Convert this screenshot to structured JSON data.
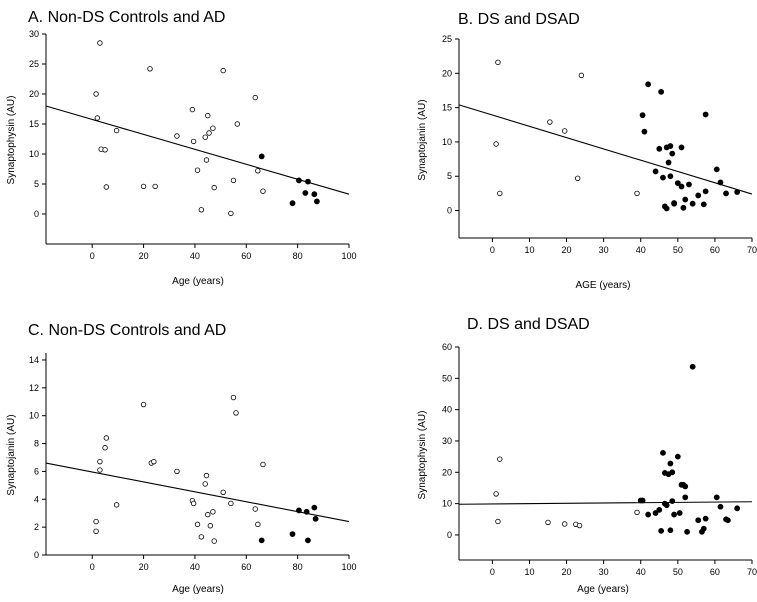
{
  "chart_data": [
    {
      "type": "scatter",
      "title": "A. Non-DS Controls and AD",
      "xlabel": "Age (years)",
      "ylabel": "Synaptophysin (AU)",
      "xlim": [
        -18,
        100
      ],
      "ylim": [
        -5,
        30
      ],
      "xticks": [
        0,
        20,
        40,
        60,
        80,
        100
      ],
      "yticks": [
        0,
        5,
        10,
        15,
        20,
        25,
        30
      ],
      "grid": false,
      "regression": {
        "x": [
          -18,
          100
        ],
        "y": [
          18.0,
          3.3
        ]
      },
      "series": [
        {
          "marker": "open",
          "points": [
            [
              1.5,
              20
            ],
            [
              2,
              16
            ],
            [
              3,
              28.5
            ],
            [
              3.5,
              10.8
            ],
            [
              5,
              10.7
            ],
            [
              5.5,
              4.5
            ],
            [
              9.5,
              13.9
            ],
            [
              20,
              4.6
            ],
            [
              22.5,
              24.2
            ],
            [
              24.5,
              4.6
            ],
            [
              33,
              13
            ],
            [
              39,
              17.4
            ],
            [
              39.5,
              12.1
            ],
            [
              41,
              7.3
            ],
            [
              42.5,
              0.7
            ],
            [
              44,
              12.8
            ],
            [
              44.5,
              9
            ],
            [
              45,
              16.4
            ],
            [
              45.5,
              13.5
            ],
            [
              47,
              14.3
            ],
            [
              47.5,
              4.4
            ],
            [
              51,
              23.9
            ],
            [
              54,
              0.1
            ],
            [
              55,
              5.6
            ],
            [
              56.5,
              15
            ],
            [
              63.5,
              19.4
            ],
            [
              64.5,
              7.2
            ],
            [
              66.5,
              3.8
            ]
          ]
        },
        {
          "marker": "filled",
          "points": [
            [
              66,
              9.6
            ],
            [
              78,
              1.8
            ],
            [
              80.5,
              5.6
            ],
            [
              83,
              3.5
            ],
            [
              84,
              5.4
            ],
            [
              86.5,
              3.3
            ],
            [
              87.5,
              2.1
            ]
          ]
        }
      ]
    },
    {
      "type": "scatter",
      "title": "B. DS and DSAD",
      "xlabel": "AGE (years)",
      "ylabel": "Synaptojanin (AU)",
      "xlim": [
        -9,
        70
      ],
      "ylim": [
        -4,
        25
      ],
      "xticks": [
        0,
        10,
        20,
        30,
        40,
        50,
        60,
        70
      ],
      "yticks": [
        0,
        5,
        10,
        15,
        20,
        25
      ],
      "grid": false,
      "regression": {
        "x": [
          -9,
          70
        ],
        "y": [
          15.4,
          2.4
        ]
      },
      "series": [
        {
          "marker": "open",
          "points": [
            [
              1,
              9.7
            ],
            [
              1.5,
              21.6
            ],
            [
              2,
              2.5
            ],
            [
              15.5,
              12.9
            ],
            [
              19.5,
              11.6
            ],
            [
              23,
              4.7
            ],
            [
              24,
              19.7
            ],
            [
              39,
              2.5
            ]
          ]
        },
        {
          "marker": "filled",
          "points": [
            [
              40.5,
              13.9
            ],
            [
              41,
              11.5
            ],
            [
              42,
              18.4
            ],
            [
              44,
              5.7
            ],
            [
              45,
              9
            ],
            [
              45.5,
              17.3
            ],
            [
              46,
              4.8
            ],
            [
              46.5,
              0.6
            ],
            [
              47,
              0.3
            ],
            [
              47,
              9.2
            ],
            [
              47.5,
              7
            ],
            [
              48,
              5
            ],
            [
              48,
              9.4
            ],
            [
              48.5,
              8.3
            ],
            [
              49,
              1
            ],
            [
              49,
              1.1
            ],
            [
              50,
              4
            ],
            [
              51,
              3.5
            ],
            [
              51,
              9.2
            ],
            [
              51.5,
              0.4
            ],
            [
              52,
              1.6
            ],
            [
              53,
              3.8
            ],
            [
              54,
              1
            ],
            [
              55.5,
              2.2
            ],
            [
              57,
              0.9
            ],
            [
              57.5,
              2.8
            ],
            [
              57.5,
              14
            ],
            [
              60.5,
              6
            ],
            [
              61.5,
              4.1
            ],
            [
              63,
              2.5
            ],
            [
              66,
              2.7
            ]
          ]
        }
      ]
    },
    {
      "type": "scatter",
      "title": "C. Non-DS Controls and AD",
      "xlabel": "Age (years)",
      "ylabel": "Synaptojanin (AU)",
      "xlim": [
        -18,
        100
      ],
      "ylim": [
        0,
        14.5
      ],
      "xticks": [
        0,
        20,
        40,
        60,
        80,
        100
      ],
      "yticks": [
        0,
        2,
        4,
        6,
        8,
        10,
        12,
        14
      ],
      "grid": false,
      "regression": {
        "x": [
          -18,
          100
        ],
        "y": [
          6.6,
          2.4
        ]
      },
      "series": [
        {
          "marker": "open",
          "points": [
            [
              1.5,
              2.4
            ],
            [
              1.5,
              1.7
            ],
            [
              3,
              6.7
            ],
            [
              3,
              6.1
            ],
            [
              5,
              7.7
            ],
            [
              5.5,
              8.4
            ],
            [
              9.5,
              3.6
            ],
            [
              20,
              10.8
            ],
            [
              23,
              6.6
            ],
            [
              24,
              6.7
            ],
            [
              33,
              6
            ],
            [
              39,
              3.9
            ],
            [
              39.5,
              3.7
            ],
            [
              41,
              2.2
            ],
            [
              42.5,
              1.3
            ],
            [
              44,
              5.1
            ],
            [
              44.5,
              5.7
            ],
            [
              45,
              2.9
            ],
            [
              46,
              2.1
            ],
            [
              47,
              3.1
            ],
            [
              47.5,
              1
            ],
            [
              51,
              4.5
            ],
            [
              54,
              3.7
            ],
            [
              55,
              11.3
            ],
            [
              56,
              10.2
            ],
            [
              63.5,
              3.3
            ],
            [
              64.5,
              2.2
            ],
            [
              66.5,
              6.5
            ]
          ]
        },
        {
          "marker": "filled",
          "points": [
            [
              66,
              1.05
            ],
            [
              78,
              1.5
            ],
            [
              80.5,
              3.2
            ],
            [
              83.5,
              3.1
            ],
            [
              84,
              1.05
            ],
            [
              86.5,
              3.4
            ],
            [
              87,
              2.6
            ]
          ]
        }
      ]
    },
    {
      "type": "scatter",
      "title": "D. DS and DSAD",
      "xlabel": "Age (years)",
      "ylabel": "Synaptophysin (AU)",
      "xlim": [
        -9,
        70
      ],
      "ylim": [
        -8,
        60
      ],
      "xticks": [
        0,
        10,
        20,
        30,
        40,
        50,
        60,
        70
      ],
      "yticks": [
        0,
        10,
        20,
        30,
        40,
        50,
        60
      ],
      "grid": false,
      "regression": {
        "x": [
          -9,
          70
        ],
        "y": [
          9.8,
          10.6
        ]
      },
      "series": [
        {
          "marker": "open",
          "points": [
            [
              1,
              13.1
            ],
            [
              1.5,
              4.3
            ],
            [
              2,
              24.2
            ],
            [
              15,
              4
            ],
            [
              19.5,
              3.5
            ],
            [
              22.5,
              3.4
            ],
            [
              23.5,
              3
            ],
            [
              39,
              7.2
            ]
          ]
        },
        {
          "marker": "filled",
          "points": [
            [
              40,
              11
            ],
            [
              40.5,
              11
            ],
            [
              42,
              6.5
            ],
            [
              44,
              7
            ],
            [
              45,
              8
            ],
            [
              45.5,
              1.3
            ],
            [
              46,
              26.2
            ],
            [
              46.5,
              19.8
            ],
            [
              46.5,
              10
            ],
            [
              47,
              9.5
            ],
            [
              47.5,
              19.4
            ],
            [
              48,
              22.8
            ],
            [
              48,
              1.5
            ],
            [
              48.5,
              10.8
            ],
            [
              48.5,
              20
            ],
            [
              49,
              6.5
            ],
            [
              50,
              25
            ],
            [
              50.5,
              7
            ],
            [
              51,
              16
            ],
            [
              51.5,
              16
            ],
            [
              52,
              15.5
            ],
            [
              52,
              12
            ],
            [
              52.5,
              1
            ],
            [
              54,
              53.7
            ],
            [
              55.5,
              4.7
            ],
            [
              56.5,
              1
            ],
            [
              57,
              2
            ],
            [
              57.5,
              5.2
            ],
            [
              60.5,
              12
            ],
            [
              61.5,
              9
            ],
            [
              63,
              5
            ],
            [
              63.5,
              4.7
            ],
            [
              66,
              8.5
            ]
          ]
        }
      ]
    }
  ]
}
